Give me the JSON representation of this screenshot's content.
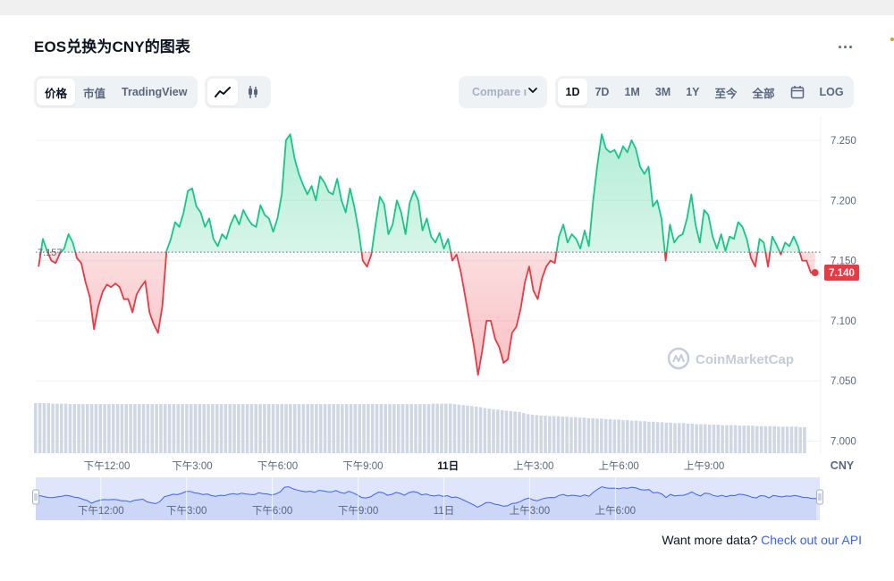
{
  "header": {
    "title": "EOS兑换为CNY的图表",
    "more_label": "..."
  },
  "chart_type_tabs": [
    {
      "label": "价格",
      "active": true
    },
    {
      "label": "市值",
      "active": false
    },
    {
      "label": "TradingView",
      "active": false
    }
  ],
  "chart_style_icons": [
    "line-chart-icon",
    "candlestick-icon"
  ],
  "compare": {
    "label": "Compare ι"
  },
  "ranges": [
    {
      "label": "1D",
      "active": true
    },
    {
      "label": "7D",
      "active": false
    },
    {
      "label": "1M",
      "active": false
    },
    {
      "label": "3M",
      "active": false
    },
    {
      "label": "1Y",
      "active": false
    },
    {
      "label": "至今",
      "active": false
    },
    {
      "label": "全部",
      "active": false
    }
  ],
  "calendar_icon": "calendar-icon",
  "log_label": "LOG",
  "colors": {
    "up": "#16c784",
    "down": "#ea3943",
    "volume": "#cfd6e4",
    "nav_fill": "#dfe6fb",
    "nav_line": "#3861fb",
    "accent": "#3861fb"
  },
  "watermark": "CoinMarketCap",
  "footer": {
    "prefix": "Want more data? ",
    "link": "Check out our API"
  },
  "chart_data": {
    "type": "line",
    "currency": "CNY",
    "reference_price": 7.157,
    "reference_label": "7.157",
    "last_price": 7.14,
    "last_price_label": "7.140",
    "ylim": [
      6.99,
      7.27
    ],
    "yticks": [
      7.0,
      7.05,
      7.1,
      7.15,
      7.2,
      7.25
    ],
    "ytick_labels": [
      "7.000",
      "7.050",
      "7.100",
      "7.150",
      "7.200",
      "7.250"
    ],
    "x_hours": [
      9.5,
      33.4
    ],
    "x_ticks": [
      {
        "h": 12,
        "label": "下午12:00",
        "bold": false
      },
      {
        "h": 15,
        "label": "下午3:00",
        "bold": false
      },
      {
        "h": 18,
        "label": "下午6:00",
        "bold": false
      },
      {
        "h": 21,
        "label": "下午9:00",
        "bold": false
      },
      {
        "h": 24,
        "label": "11日",
        "bold": true
      },
      {
        "h": 27,
        "label": "上午3:00",
        "bold": false
      },
      {
        "h": 30,
        "label": "上午6:00",
        "bold": false
      },
      {
        "h": 33,
        "label": "上午9:00",
        "bold": false
      }
    ],
    "nav_ticks": [
      {
        "h": 12,
        "label": "下午12:00"
      },
      {
        "h": 15,
        "label": "下午3:00"
      },
      {
        "h": 18,
        "label": "下午6:00"
      },
      {
        "h": 21,
        "label": "下午9:00"
      },
      {
        "h": 24,
        "label": "11日"
      },
      {
        "h": 27,
        "label": "上午3:00"
      },
      {
        "h": 30,
        "label": "上午6:00"
      }
    ],
    "series": [
      {
        "values": [
          [
            9.6,
            7.145
          ],
          [
            9.75,
            7.168
          ],
          [
            9.9,
            7.158
          ],
          [
            10.05,
            7.15
          ],
          [
            10.2,
            7.148
          ],
          [
            10.35,
            7.156
          ],
          [
            10.5,
            7.16
          ],
          [
            10.65,
            7.172
          ],
          [
            10.8,
            7.165
          ],
          [
            10.95,
            7.152
          ],
          [
            11.1,
            7.148
          ],
          [
            11.25,
            7.132
          ],
          [
            11.4,
            7.12
          ],
          [
            11.55,
            7.093
          ],
          [
            11.7,
            7.112
          ],
          [
            11.85,
            7.124
          ],
          [
            12.0,
            7.13
          ],
          [
            12.15,
            7.128
          ],
          [
            12.3,
            7.131
          ],
          [
            12.45,
            7.128
          ],
          [
            12.6,
            7.118
          ],
          [
            12.75,
            7.118
          ],
          [
            12.9,
            7.107
          ],
          [
            13.05,
            7.122
          ],
          [
            13.2,
            7.128
          ],
          [
            13.35,
            7.133
          ],
          [
            13.5,
            7.107
          ],
          [
            13.65,
            7.097
          ],
          [
            13.8,
            7.09
          ],
          [
            13.95,
            7.112
          ],
          [
            14.1,
            7.158
          ],
          [
            14.25,
            7.168
          ],
          [
            14.4,
            7.182
          ],
          [
            14.55,
            7.178
          ],
          [
            14.7,
            7.19
          ],
          [
            14.85,
            7.208
          ],
          [
            15.0,
            7.21
          ],
          [
            15.15,
            7.195
          ],
          [
            15.3,
            7.19
          ],
          [
            15.45,
            7.178
          ],
          [
            15.6,
            7.185
          ],
          [
            15.75,
            7.168
          ],
          [
            15.9,
            7.162
          ],
          [
            16.05,
            7.172
          ],
          [
            16.2,
            7.168
          ],
          [
            16.35,
            7.18
          ],
          [
            16.5,
            7.188
          ],
          [
            16.65,
            7.18
          ],
          [
            16.8,
            7.192
          ],
          [
            16.95,
            7.185
          ],
          [
            17.1,
            7.18
          ],
          [
            17.25,
            7.178
          ],
          [
            17.4,
            7.196
          ],
          [
            17.55,
            7.188
          ],
          [
            17.7,
            7.185
          ],
          [
            17.85,
            7.174
          ],
          [
            18.0,
            7.185
          ],
          [
            18.15,
            7.205
          ],
          [
            18.3,
            7.25
          ],
          [
            18.45,
            7.255
          ],
          [
            18.6,
            7.235
          ],
          [
            18.75,
            7.222
          ],
          [
            18.9,
            7.213
          ],
          [
            19.05,
            7.205
          ],
          [
            19.2,
            7.212
          ],
          [
            19.35,
            7.2
          ],
          [
            19.5,
            7.22
          ],
          [
            19.65,
            7.215
          ],
          [
            19.8,
            7.207
          ],
          [
            19.95,
            7.205
          ],
          [
            20.1,
            7.218
          ],
          [
            20.25,
            7.2
          ],
          [
            20.4,
            7.19
          ],
          [
            20.55,
            7.21
          ],
          [
            20.7,
            7.195
          ],
          [
            20.85,
            7.175
          ],
          [
            21.0,
            7.15
          ],
          [
            21.15,
            7.145
          ],
          [
            21.3,
            7.155
          ],
          [
            21.45,
            7.18
          ],
          [
            21.6,
            7.203
          ],
          [
            21.75,
            7.197
          ],
          [
            21.9,
            7.172
          ],
          [
            22.05,
            7.18
          ],
          [
            22.2,
            7.2
          ],
          [
            22.35,
            7.19
          ],
          [
            22.5,
            7.172
          ],
          [
            22.65,
            7.198
          ],
          [
            22.8,
            7.208
          ],
          [
            22.95,
            7.2
          ],
          [
            23.1,
            7.175
          ],
          [
            23.25,
            7.185
          ],
          [
            23.4,
            7.17
          ],
          [
            23.55,
            7.165
          ],
          [
            23.7,
            7.173
          ],
          [
            23.85,
            7.16
          ],
          [
            24.0,
            7.168
          ],
          [
            24.15,
            7.15
          ],
          [
            24.3,
            7.155
          ],
          [
            24.45,
            7.14
          ],
          [
            24.6,
            7.12
          ],
          [
            24.75,
            7.1
          ],
          [
            24.9,
            7.08
          ],
          [
            25.05,
            7.055
          ],
          [
            25.2,
            7.075
          ],
          [
            25.35,
            7.1
          ],
          [
            25.5,
            7.1
          ],
          [
            25.65,
            7.085
          ],
          [
            25.8,
            7.078
          ],
          [
            25.95,
            7.065
          ],
          [
            26.1,
            7.068
          ],
          [
            26.25,
            7.09
          ],
          [
            26.4,
            7.095
          ],
          [
            26.55,
            7.11
          ],
          [
            26.7,
            7.132
          ],
          [
            26.85,
            7.145
          ],
          [
            27.0,
            7.125
          ],
          [
            27.15,
            7.118
          ],
          [
            27.3,
            7.135
          ],
          [
            27.45,
            7.145
          ],
          [
            27.6,
            7.15
          ],
          [
            27.75,
            7.148
          ],
          [
            27.9,
            7.17
          ],
          [
            28.05,
            7.18
          ],
          [
            28.2,
            7.165
          ],
          [
            28.35,
            7.172
          ],
          [
            28.5,
            7.168
          ],
          [
            28.65,
            7.16
          ],
          [
            28.8,
            7.175
          ],
          [
            28.95,
            7.162
          ],
          [
            29.1,
            7.2
          ],
          [
            29.25,
            7.23
          ],
          [
            29.4,
            7.255
          ],
          [
            29.55,
            7.243
          ],
          [
            29.7,
            7.24
          ],
          [
            29.85,
            7.242
          ],
          [
            30.0,
            7.235
          ],
          [
            30.15,
            7.245
          ],
          [
            30.3,
            7.24
          ],
          [
            30.45,
            7.25
          ],
          [
            30.6,
            7.243
          ],
          [
            30.75,
            7.228
          ],
          [
            30.9,
            7.222
          ],
          [
            31.05,
            7.228
          ],
          [
            31.2,
            7.195
          ],
          [
            31.35,
            7.2
          ],
          [
            31.5,
            7.185
          ],
          [
            31.65,
            7.15
          ],
          [
            31.8,
            7.18
          ],
          [
            31.95,
            7.165
          ],
          [
            32.1,
            7.17
          ],
          [
            32.25,
            7.172
          ],
          [
            32.4,
            7.185
          ],
          [
            32.55,
            7.205
          ],
          [
            32.7,
            7.18
          ],
          [
            32.85,
            7.165
          ],
          [
            33.0,
            7.192
          ],
          [
            33.15,
            7.188
          ],
          [
            33.3,
            7.17
          ],
          [
            33.45,
            7.16
          ],
          [
            33.6,
            7.172
          ],
          [
            33.75,
            7.158
          ],
          [
            33.9,
            7.17
          ],
          [
            34.05,
            7.168
          ],
          [
            34.2,
            7.182
          ],
          [
            34.35,
            7.178
          ],
          [
            34.5,
            7.168
          ],
          [
            34.65,
            7.152
          ],
          [
            34.8,
            7.145
          ],
          [
            34.95,
            7.168
          ],
          [
            35.1,
            7.165
          ],
          [
            35.25,
            7.145
          ],
          [
            35.4,
            7.17
          ],
          [
            35.55,
            7.163
          ],
          [
            35.7,
            7.155
          ],
          [
            35.85,
            7.165
          ],
          [
            36.0,
            7.162
          ],
          [
            36.15,
            7.17
          ],
          [
            36.3,
            7.162
          ],
          [
            36.45,
            7.15
          ],
          [
            36.6,
            7.15
          ],
          [
            36.75,
            7.14
          ],
          [
            36.9,
            7.14
          ]
        ]
      }
    ],
    "volume_levels": [
      1.0,
      1.0,
      1.0,
      1.0,
      0.99,
      0.99,
      0.99,
      0.99,
      0.98,
      0.98,
      0.98,
      0.98,
      0.98,
      0.98,
      0.98,
      0.98,
      0.98,
      0.98,
      0.98,
      0.98,
      0.98,
      0.98,
      0.98,
      0.98,
      0.98,
      0.98,
      0.98,
      0.98,
      0.98,
      0.98,
      0.98,
      0.98,
      0.98,
      0.98,
      0.98,
      0.98,
      0.98,
      0.98,
      0.98,
      0.98,
      0.98,
      0.98,
      0.98,
      0.98,
      0.98,
      0.98,
      0.98,
      0.98,
      0.98,
      0.98,
      0.98,
      0.98,
      0.98,
      0.98,
      0.98,
      0.98,
      0.98,
      0.98,
      0.98,
      0.98,
      0.98,
      0.98,
      0.98,
      0.98,
      0.98,
      0.98,
      0.98,
      0.98,
      0.98,
      0.98,
      0.98,
      0.98,
      0.98,
      0.98,
      0.98,
      0.98,
      0.98,
      0.98,
      0.98,
      0.98,
      0.98,
      0.98,
      0.98,
      0.98,
      0.98,
      0.98,
      0.98,
      0.98,
      0.98,
      0.98,
      0.98,
      0.98,
      0.99,
      0.99,
      0.99,
      0.99,
      0.99,
      0.98,
      0.97,
      0.96,
      0.95,
      0.94,
      0.93,
      0.92,
      0.9,
      0.89,
      0.88,
      0.87,
      0.86,
      0.85,
      0.84,
      0.83,
      0.82,
      0.8,
      0.78,
      0.77,
      0.76,
      0.75,
      0.75,
      0.74,
      0.74,
      0.74,
      0.73,
      0.73,
      0.72,
      0.72,
      0.71,
      0.71,
      0.7,
      0.7,
      0.69,
      0.69,
      0.68,
      0.68,
      0.67,
      0.67,
      0.66,
      0.66,
      0.65,
      0.65,
      0.64,
      0.64,
      0.63,
      0.63,
      0.62,
      0.62,
      0.61,
      0.61,
      0.6,
      0.6,
      0.6,
      0.59,
      0.59,
      0.58,
      0.58,
      0.58,
      0.57,
      0.57,
      0.57,
      0.56,
      0.56,
      0.56,
      0.56,
      0.55,
      0.55,
      0.55,
      0.55,
      0.54,
      0.54,
      0.54,
      0.54,
      0.54,
      0.53,
      0.53,
      0.53,
      0.53,
      0.53,
      0.52,
      0.52
    ]
  }
}
